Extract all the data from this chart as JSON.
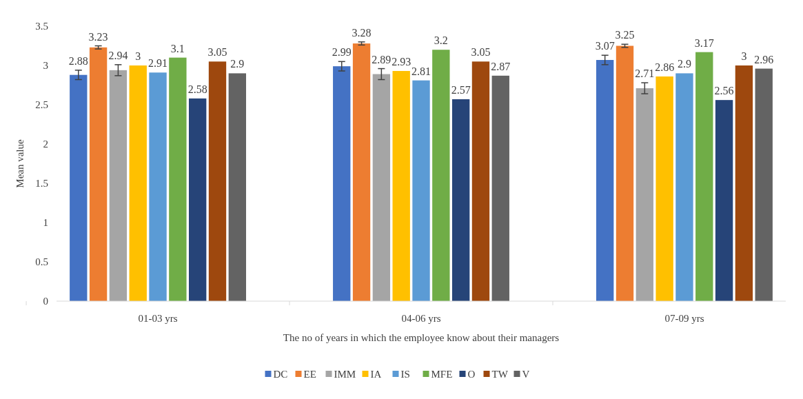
{
  "chart_data": {
    "type": "bar",
    "xlabel": "The no of years in which the employee know about their managers",
    "ylabel": "Mean value",
    "categories": [
      "01-03 yrs",
      "04-06 yrs",
      "07-09 yrs"
    ],
    "series": [
      {
        "name": "DC",
        "color": "#4472c4",
        "values": [
          2.88,
          2.99,
          3.07
        ],
        "errors": [
          0.06,
          0.06,
          0.06
        ]
      },
      {
        "name": "EE",
        "color": "#ed7d31",
        "values": [
          3.23,
          3.28,
          3.25
        ],
        "errors": [
          0.02,
          0.02,
          0.02
        ]
      },
      {
        "name": "IMM",
        "color": "#a5a5a5",
        "values": [
          2.94,
          2.89,
          2.71
        ],
        "errors": [
          0.07,
          0.07,
          0.07
        ]
      },
      {
        "name": "IA",
        "color": "#ffc000",
        "values": [
          3,
          2.93,
          2.86
        ]
      },
      {
        "name": "IS",
        "color": "#5b9bd5",
        "values": [
          2.91,
          2.81,
          2.9
        ]
      },
      {
        "name": "MFE",
        "color": "#70ad47",
        "values": [
          3.1,
          3.2,
          3.17
        ]
      },
      {
        "name": "O",
        "color": "#264478",
        "values": [
          2.58,
          2.57,
          2.56
        ]
      },
      {
        "name": "TW",
        "color": "#9e480e",
        "values": [
          3.05,
          3.05,
          3
        ]
      },
      {
        "name": "V",
        "color": "#636363",
        "values": [
          2.9,
          2.87,
          2.96
        ]
      }
    ],
    "ylim": [
      0,
      3.5
    ],
    "yticks": [
      0,
      0.5,
      1,
      1.5,
      2,
      2.5,
      3,
      3.5
    ],
    "grid": false,
    "legend": "bottom",
    "data_labels": true
  }
}
